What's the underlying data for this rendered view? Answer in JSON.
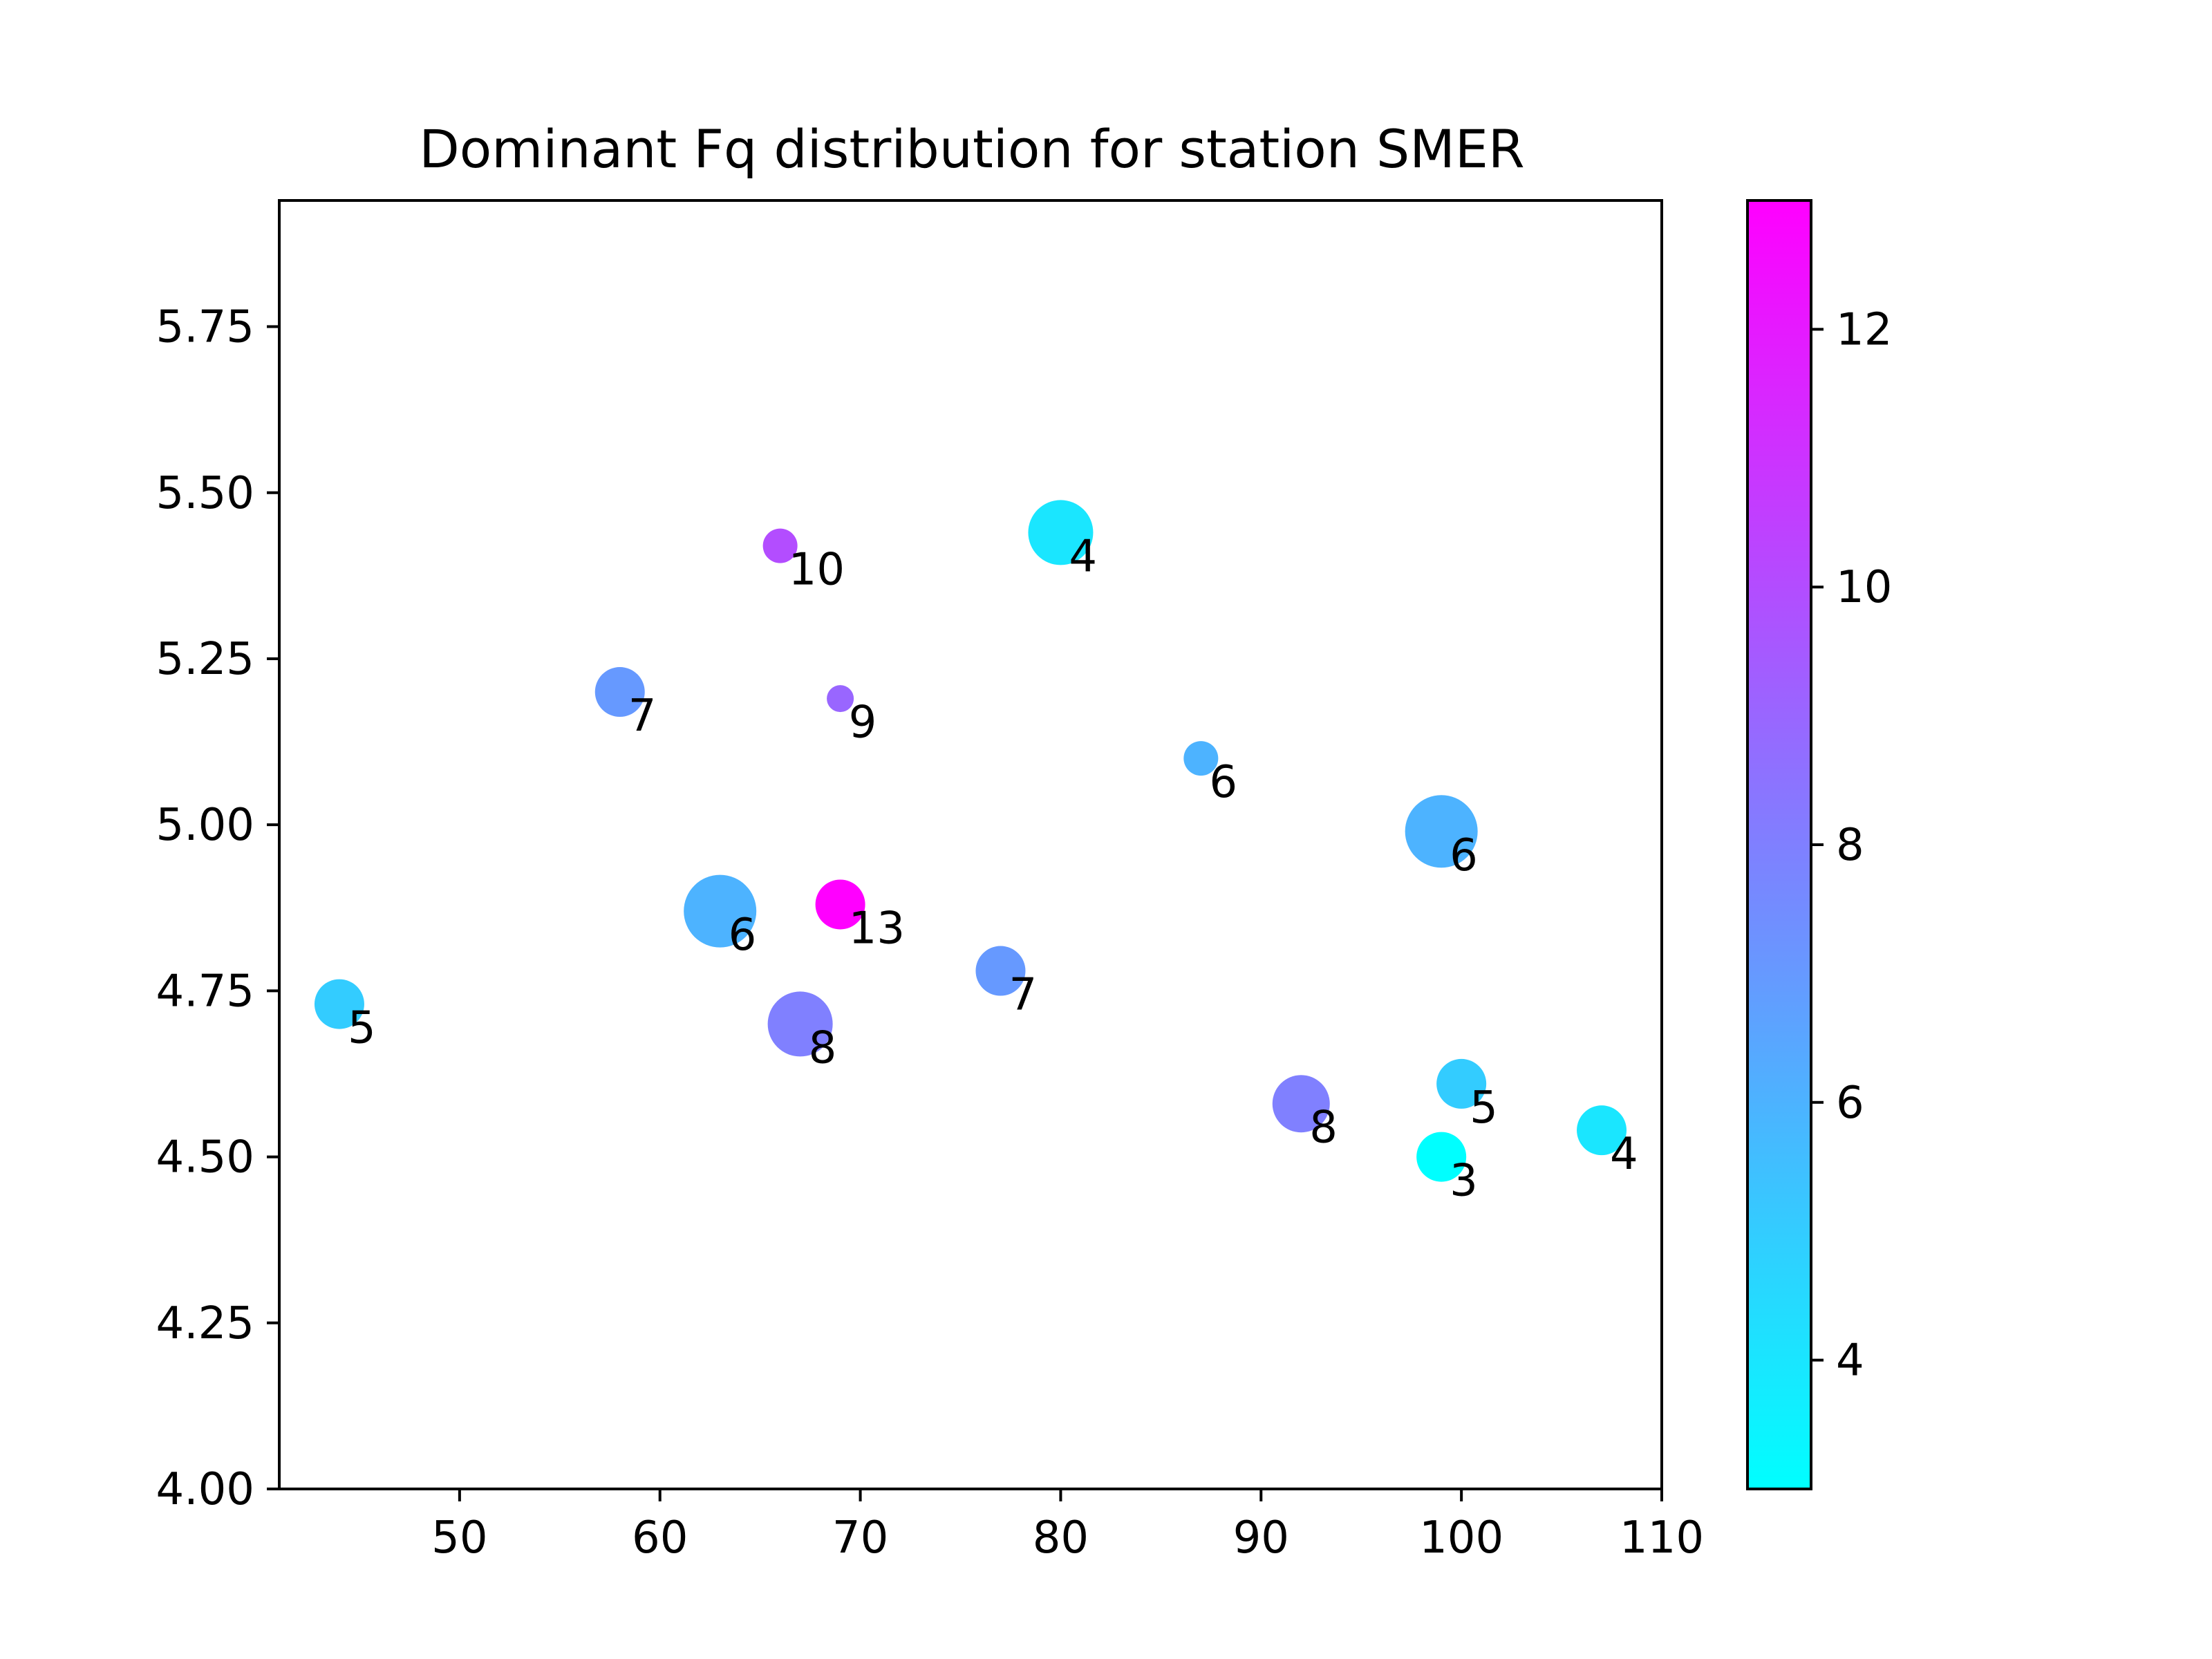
{
  "chart_data": {
    "type": "scatter",
    "title": "Dominant Fq distribution for station SMER",
    "xlabel": "",
    "ylabel": "",
    "xlim": [
      41,
      110
    ],
    "ylim": [
      4.0,
      5.94
    ],
    "xticks": [
      "50",
      "60",
      "70",
      "80",
      "90",
      "100",
      "110"
    ],
    "yticks": [
      "4.00",
      "4.25",
      "4.50",
      "4.75",
      "5.00",
      "5.25",
      "5.50",
      "5.75"
    ],
    "colormap": "cool",
    "colormap_endpoints": [
      "#00ffff",
      "#ff00ff"
    ],
    "colorbar": {
      "range": [
        3,
        13
      ],
      "ticks": [
        "4",
        "6",
        "8",
        "10",
        "12"
      ]
    },
    "grid": false,
    "points": [
      {
        "x": 44,
        "y": 4.73,
        "value": 5,
        "label": "5",
        "size": 4
      },
      {
        "x": 58,
        "y": 5.2,
        "value": 7,
        "label": "7",
        "size": 4
      },
      {
        "x": 63,
        "y": 4.87,
        "value": 6,
        "label": "6",
        "size": 7
      },
      {
        "x": 66,
        "y": 5.42,
        "value": 10,
        "label": "10",
        "size": 2
      },
      {
        "x": 67,
        "y": 4.7,
        "value": 8,
        "label": "8",
        "size": 6
      },
      {
        "x": 69,
        "y": 5.19,
        "value": 9,
        "label": "9",
        "size": 1
      },
      {
        "x": 69,
        "y": 4.88,
        "value": 13,
        "label": "13",
        "size": 4
      },
      {
        "x": 77,
        "y": 4.78,
        "value": 7,
        "label": "7",
        "size": 4
      },
      {
        "x": 80,
        "y": 5.44,
        "value": 4,
        "label": "4",
        "size": 6
      },
      {
        "x": 87,
        "y": 5.1,
        "value": 6,
        "label": "6",
        "size": 2
      },
      {
        "x": 92,
        "y": 4.58,
        "value": 8,
        "label": "8",
        "size": 5
      },
      {
        "x": 99,
        "y": 4.99,
        "value": 6,
        "label": "6",
        "size": 7
      },
      {
        "x": 99,
        "y": 4.5,
        "value": 3,
        "label": "3",
        "size": 4
      },
      {
        "x": 100,
        "y": 4.61,
        "value": 5,
        "label": "5",
        "size": 4
      },
      {
        "x": 107,
        "y": 4.54,
        "value": 4,
        "label": "4",
        "size": 4
      }
    ]
  }
}
